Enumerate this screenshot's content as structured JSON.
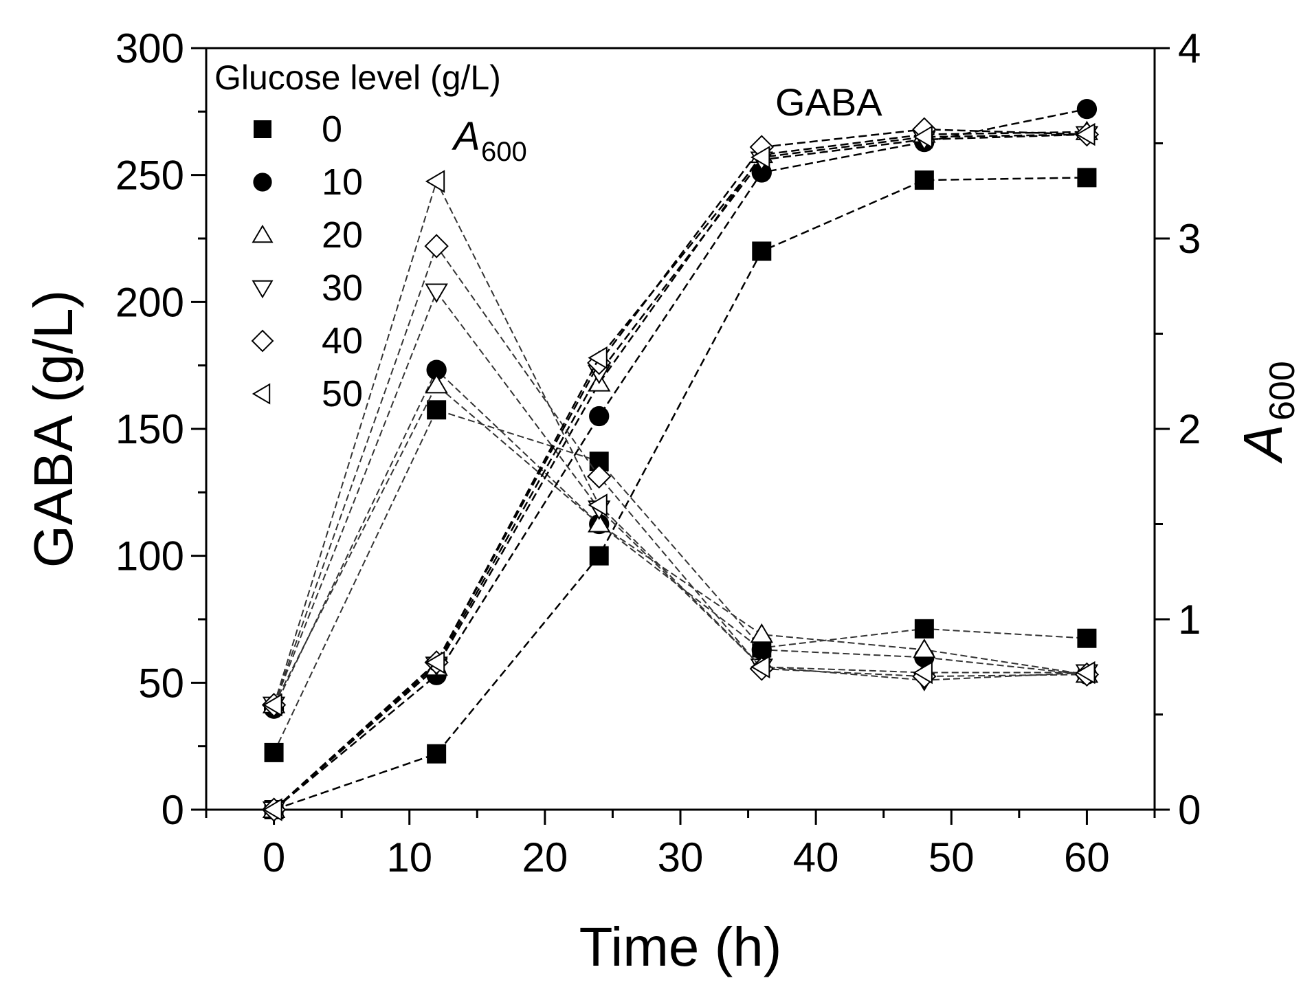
{
  "chart_data": {
    "type": "line",
    "title": "",
    "xlabel": "Time (h)",
    "ylabel": "GABA (g/L)",
    "y2label_main": "A",
    "y2label_sub": "600",
    "xlim": [
      -5,
      65
    ],
    "ylim": [
      0,
      300
    ],
    "y2lim": [
      0,
      4
    ],
    "xticks": [
      0,
      10,
      20,
      30,
      40,
      50,
      60
    ],
    "yticks": [
      0,
      50,
      100,
      150,
      200,
      250,
      300
    ],
    "y2ticks": [
      0,
      1,
      2,
      3,
      4
    ],
    "x": [
      0,
      12,
      24,
      36,
      48,
      60
    ],
    "legend_title": "Glucose level (g/L)",
    "annotations": {
      "gaba_label": "GABA",
      "a600_main": "A",
      "a600_sub": "600"
    },
    "series": [
      {
        "name": "0",
        "marker": "square",
        "filled": true,
        "gaba": [
          0,
          22,
          100,
          220,
          248,
          249
        ],
        "a600": [
          0.3,
          2.1,
          1.83,
          0.85,
          0.95,
          0.9
        ]
      },
      {
        "name": "10",
        "marker": "circle",
        "filled": true,
        "gaba": [
          0,
          53,
          155,
          251,
          263,
          276
        ],
        "a600": [
          0.53,
          2.31,
          1.5,
          0.84,
          0.8,
          0.71
        ]
      },
      {
        "name": "20",
        "marker": "triangle-up",
        "filled": false,
        "gaba": [
          0,
          56,
          168,
          258,
          266,
          267
        ],
        "a600": [
          0.55,
          2.23,
          1.5,
          0.92,
          0.84,
          0.71
        ]
      },
      {
        "name": "30",
        "marker": "triangle-down",
        "filled": false,
        "gaba": [
          0,
          57,
          172,
          256,
          264,
          266
        ],
        "a600": [
          0.55,
          2.72,
          1.58,
          0.75,
          0.68,
          0.72
        ]
      },
      {
        "name": "40",
        "marker": "diamond",
        "filled": false,
        "gaba": [
          0,
          58,
          176,
          261,
          268,
          266
        ],
        "a600": [
          0.55,
          2.96,
          1.75,
          0.74,
          0.7,
          0.71
        ]
      },
      {
        "name": "50",
        "marker": "triangle-left",
        "filled": false,
        "gaba": [
          0,
          58,
          178,
          257,
          265,
          266
        ],
        "a600": [
          0.55,
          3.3,
          1.6,
          0.75,
          0.72,
          0.72
        ]
      }
    ]
  }
}
